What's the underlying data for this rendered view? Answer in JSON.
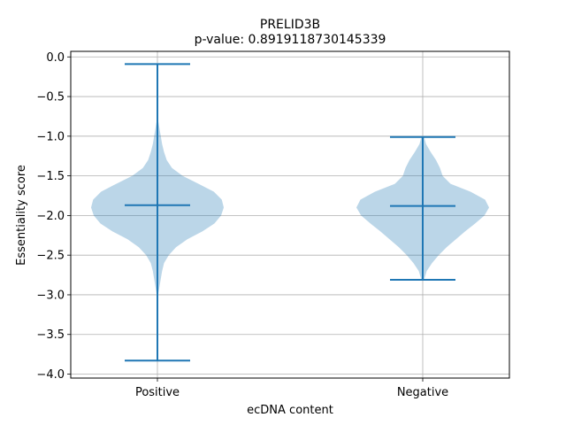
{
  "chart_data": {
    "type": "violin",
    "title": "PRELID3B",
    "subtitle": "p-value: 0.8919118730145339",
    "xlabel": "ecDNA content",
    "ylabel": "Essentiality score",
    "ylim": [
      -4.05,
      0.07
    ],
    "yticks": [
      0.0,
      -0.5,
      -1.0,
      -1.5,
      -2.0,
      -2.5,
      -3.0,
      -3.5,
      -4.0
    ],
    "ytick_labels": [
      "0.0",
      "−0.5",
      "−1.0",
      "−1.5",
      "−2.0",
      "−2.5",
      "−3.0",
      "−3.5",
      "−4.0"
    ],
    "grid": true,
    "categories": [
      "Positive",
      "Negative"
    ],
    "series": [
      {
        "category": "Positive",
        "min": -3.83,
        "median": -1.87,
        "max": -0.09,
        "density": [
          [
            -3.83,
            0.0
          ],
          [
            -3.5,
            0.0
          ],
          [
            -3.2,
            0.0
          ],
          [
            -3.0,
            0.01
          ],
          [
            -2.9,
            0.03
          ],
          [
            -2.8,
            0.05
          ],
          [
            -2.7,
            0.07
          ],
          [
            -2.6,
            0.1
          ],
          [
            -2.5,
            0.17
          ],
          [
            -2.4,
            0.28
          ],
          [
            -2.3,
            0.45
          ],
          [
            -2.2,
            0.68
          ],
          [
            -2.1,
            0.86
          ],
          [
            -2.0,
            0.96
          ],
          [
            -1.9,
            1.0
          ],
          [
            -1.8,
            0.97
          ],
          [
            -1.7,
            0.85
          ],
          [
            -1.6,
            0.62
          ],
          [
            -1.5,
            0.38
          ],
          [
            -1.4,
            0.22
          ],
          [
            -1.3,
            0.14
          ],
          [
            -1.2,
            0.1
          ],
          [
            -1.1,
            0.07
          ],
          [
            -1.0,
            0.05
          ],
          [
            -0.9,
            0.03
          ],
          [
            -0.8,
            0.01
          ],
          [
            -0.7,
            0.0
          ],
          [
            -0.09,
            0.0
          ]
        ]
      },
      {
        "category": "Negative",
        "min": -2.81,
        "median": -1.88,
        "max": -1.01,
        "density": [
          [
            -2.81,
            0.02
          ],
          [
            -2.7,
            0.06
          ],
          [
            -2.6,
            0.14
          ],
          [
            -2.5,
            0.24
          ],
          [
            -2.4,
            0.36
          ],
          [
            -2.3,
            0.5
          ],
          [
            -2.2,
            0.64
          ],
          [
            -2.1,
            0.79
          ],
          [
            -2.0,
            0.93
          ],
          [
            -1.9,
            1.0
          ],
          [
            -1.8,
            0.94
          ],
          [
            -1.7,
            0.72
          ],
          [
            -1.6,
            0.42
          ],
          [
            -1.5,
            0.3
          ],
          [
            -1.4,
            0.26
          ],
          [
            -1.3,
            0.2
          ],
          [
            -1.2,
            0.12
          ],
          [
            -1.1,
            0.05
          ],
          [
            -1.01,
            0.02
          ]
        ]
      }
    ],
    "colors": {
      "violin_fill": "#1f77b4",
      "lines": "#1f77b4",
      "grid": "#b0b0b0"
    }
  }
}
